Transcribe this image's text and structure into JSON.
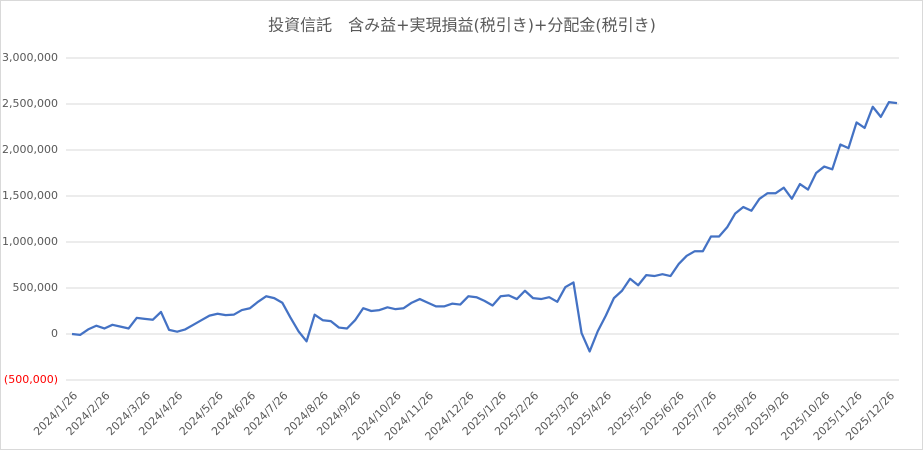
{
  "chart_data": {
    "type": "line",
    "title": "投資信託　含み益+実現損益(税引き)+分配金(税引き)",
    "categories": [
      "2024/1/26",
      null,
      null,
      null,
      "2024/2/26",
      null,
      null,
      null,
      null,
      "2024/3/26",
      null,
      null,
      null,
      "2024/4/26",
      null,
      null,
      null,
      null,
      "2024/5/26",
      null,
      null,
      null,
      "2024/6/26",
      null,
      null,
      null,
      "2024/7/26",
      null,
      null,
      null,
      null,
      "2024/8/26",
      null,
      null,
      null,
      "2024/9/26",
      null,
      null,
      null,
      null,
      "2024/10/26",
      null,
      null,
      null,
      "2024/11/26",
      null,
      null,
      null,
      null,
      "2024/12/26",
      null,
      null,
      null,
      "2025/1/26",
      null,
      null,
      null,
      "2025/2/26",
      null,
      null,
      null,
      null,
      "2025/3/26",
      null,
      null,
      null,
      "2025/4/26",
      null,
      null,
      null,
      null,
      "2025/5/26",
      null,
      null,
      null,
      "2025/6/26",
      null,
      null,
      null,
      "2025/7/26",
      null,
      null,
      null,
      null,
      "2025/8/26",
      null,
      null,
      null,
      "2025/9/26",
      null,
      null,
      null,
      null,
      "2025/10/26",
      null,
      null,
      null,
      "2025/11/26",
      null,
      null,
      null,
      "2025/12/26",
      null
    ],
    "series": [
      {
        "color": "#4472c4",
        "values": [
          0,
          -10000,
          50000,
          90000,
          60000,
          100000,
          80000,
          60000,
          175000,
          165000,
          155000,
          240000,
          45000,
          25000,
          50000,
          100000,
          150000,
          200000,
          220000,
          205000,
          210000,
          260000,
          280000,
          350000,
          410000,
          390000,
          340000,
          180000,
          30000,
          -80000,
          210000,
          150000,
          140000,
          70000,
          60000,
          150000,
          280000,
          250000,
          260000,
          290000,
          270000,
          280000,
          340000,
          380000,
          340000,
          300000,
          300000,
          330000,
          320000,
          410000,
          400000,
          360000,
          310000,
          410000,
          420000,
          380000,
          470000,
          390000,
          380000,
          400000,
          350000,
          510000,
          560000,
          10000,
          -190000,
          30000,
          200000,
          390000,
          470000,
          600000,
          530000,
          640000,
          630000,
          650000,
          630000,
          760000,
          850000,
          900000,
          900000,
          1060000,
          1060000,
          1160000,
          1310000,
          1380000,
          1340000,
          1470000,
          1530000,
          1530000,
          1590000,
          1470000,
          1630000,
          1570000,
          1750000,
          1820000,
          1790000,
          2060000,
          2020000,
          2300000,
          2240000,
          2470000,
          2360000,
          2520000,
          2510000
        ]
      }
    ],
    "ylim": [
      -500000,
      3000000
    ],
    "yticks": [
      {
        "value": -500000,
        "label": "(500,000)"
      },
      0,
      {
        "value": 500000,
        "label": "500,000"
      },
      {
        "value": 1000000,
        "label": "1,000,000"
      },
      {
        "value": 1500000,
        "label": "1,500,000"
      },
      {
        "value": 2000000,
        "label": "2,000,000"
      },
      {
        "value": 2500000,
        "label": "2,500,000"
      },
      {
        "value": 3000000,
        "label": "3,000,000"
      }
    ],
    "grid": true
  }
}
